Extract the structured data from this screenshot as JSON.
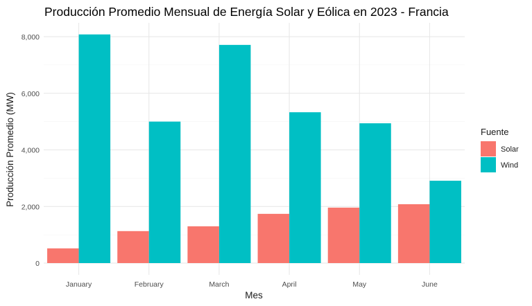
{
  "chart_data": {
    "type": "bar",
    "title": "Producción Promedio Mensual de Energía Solar y Eólica en 2023 - Francia",
    "xlabel": "Mes",
    "ylabel": "Producción Promedio (MW)",
    "categories": [
      "January",
      "February",
      "March",
      "April",
      "May",
      "June"
    ],
    "series": [
      {
        "name": "Solar",
        "values": [
          520,
          1130,
          1300,
          1740,
          1960,
          2080
        ],
        "color": "#F8766D"
      },
      {
        "name": "Wind",
        "values": [
          8080,
          5000,
          7710,
          5330,
          4940,
          2910
        ],
        "color": "#00BFC4"
      }
    ],
    "ylim": [
      0,
      8500
    ],
    "y_ticks": [
      0,
      2000,
      4000,
      6000,
      8000
    ],
    "y_tick_labels": [
      "0",
      "2,000",
      "4,000",
      "6,000",
      "8,000"
    ],
    "grid": true,
    "legend": {
      "title": "Fuente",
      "position": "right"
    }
  }
}
